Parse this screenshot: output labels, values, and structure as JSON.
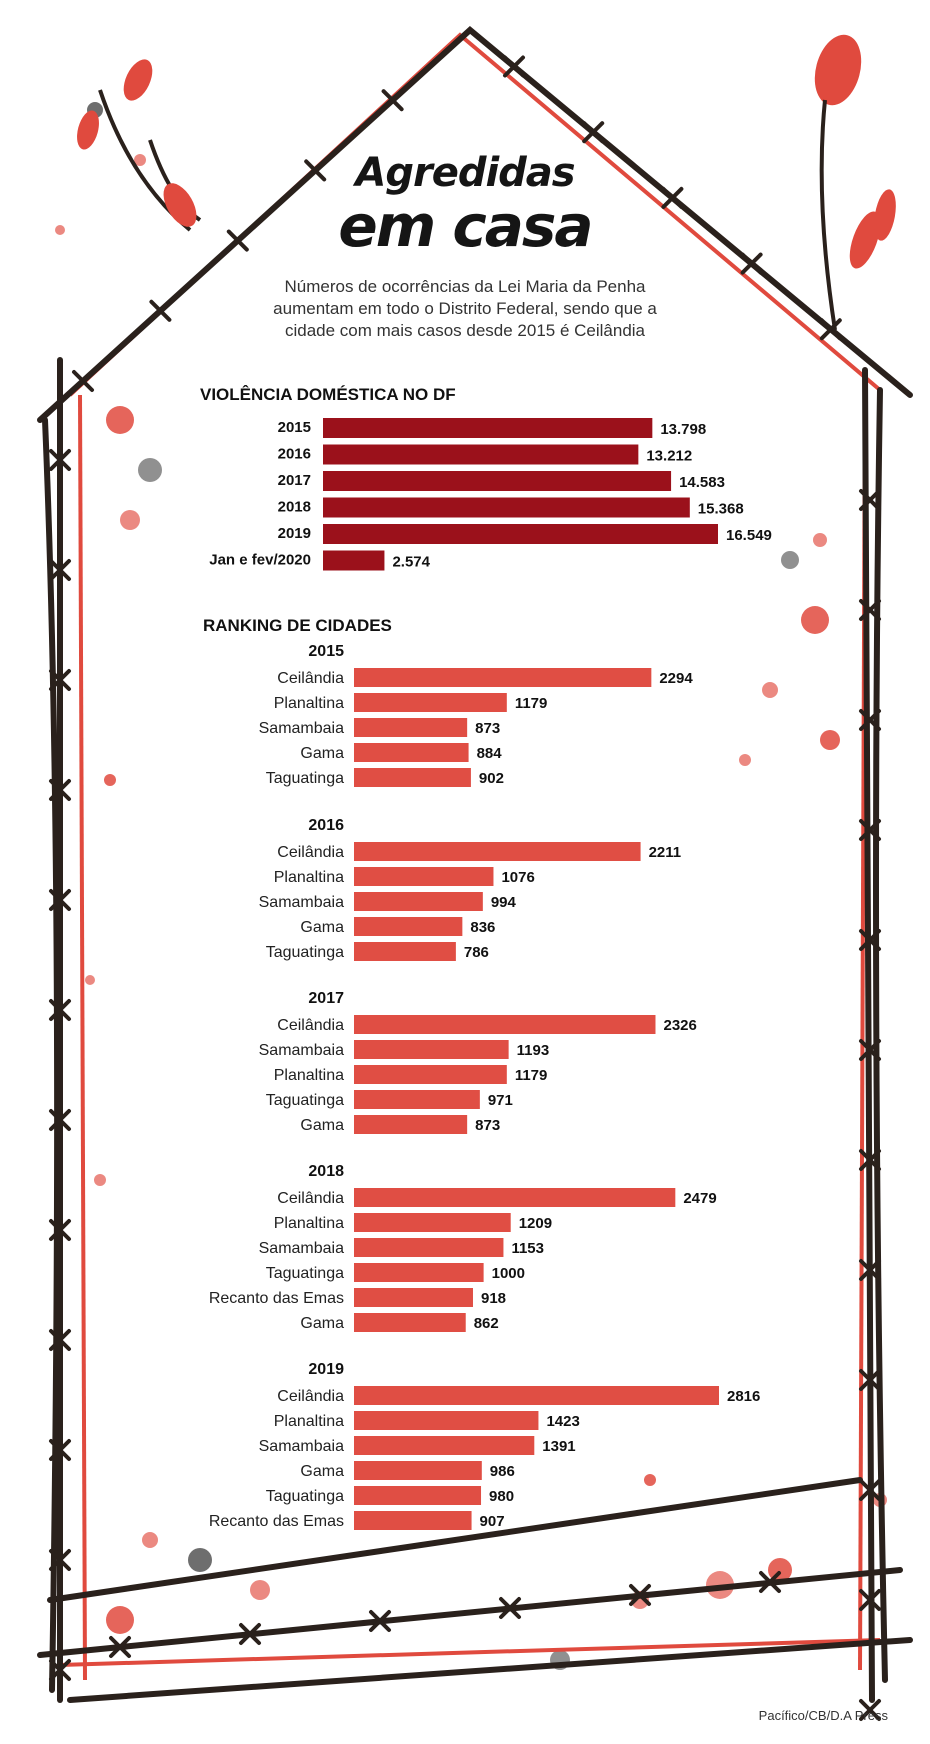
{
  "title_line1": "Agredidas",
  "title_line2": "em casa",
  "subtitle": "Números de ocorrências da Lei Maria da Penha aumentam em todo o Distrito Federal, sendo que a cidade com mais casos desde 2015 é Ceilândia",
  "credit": "Pacífico/CB/D.A Press",
  "colors": {
    "dark_bar": "#9b111b",
    "light_bar": "#e04e44",
    "wire": "#2a211c",
    "blood": "#e04a3e"
  },
  "chart_data": [
    {
      "type": "bar",
      "orientation": "horizontal",
      "title": "VIOLÊNCIA DOMÉSTICA NO DF",
      "categories": [
        "2015",
        "2016",
        "2017",
        "2018",
        "2019",
        "Jan e fev/2020"
      ],
      "values": [
        13798,
        13212,
        14583,
        15368,
        16549,
        2574
      ],
      "value_labels": [
        "13.798",
        "13.212",
        "14.583",
        "15.368",
        "16.549",
        "2.574"
      ]
    },
    {
      "type": "bar",
      "orientation": "horizontal",
      "title": "RANKING DE CIDADES",
      "groups": [
        {
          "year": "2015",
          "categories": [
            "Ceilândia",
            "Planaltina",
            "Samambaia",
            "Gama",
            "Taguatinga"
          ],
          "values": [
            2294,
            1179,
            873,
            884,
            902
          ]
        },
        {
          "year": "2016",
          "categories": [
            "Ceilândia",
            "Planaltina",
            "Samambaia",
            "Gama",
            "Taguatinga"
          ],
          "values": [
            2211,
            1076,
            994,
            836,
            786
          ]
        },
        {
          "year": "2017",
          "categories": [
            "Ceilândia",
            "Samambaia",
            "Planaltina",
            "Taguatinga",
            "Gama"
          ],
          "values": [
            2326,
            1193,
            1179,
            971,
            873
          ]
        },
        {
          "year": "2018",
          "categories": [
            "Ceilândia",
            "Planaltina",
            "Samambaia",
            "Taguatinga",
            "Recanto das Emas",
            "Gama"
          ],
          "values": [
            2479,
            1209,
            1153,
            1000,
            918,
            862
          ]
        },
        {
          "year": "2019",
          "categories": [
            "Ceilândia",
            "Planaltina",
            "Samambaia",
            "Gama",
            "Taguatinga",
            "Recanto das Emas"
          ],
          "values": [
            2816,
            1423,
            1391,
            986,
            980,
            907
          ]
        }
      ]
    }
  ]
}
